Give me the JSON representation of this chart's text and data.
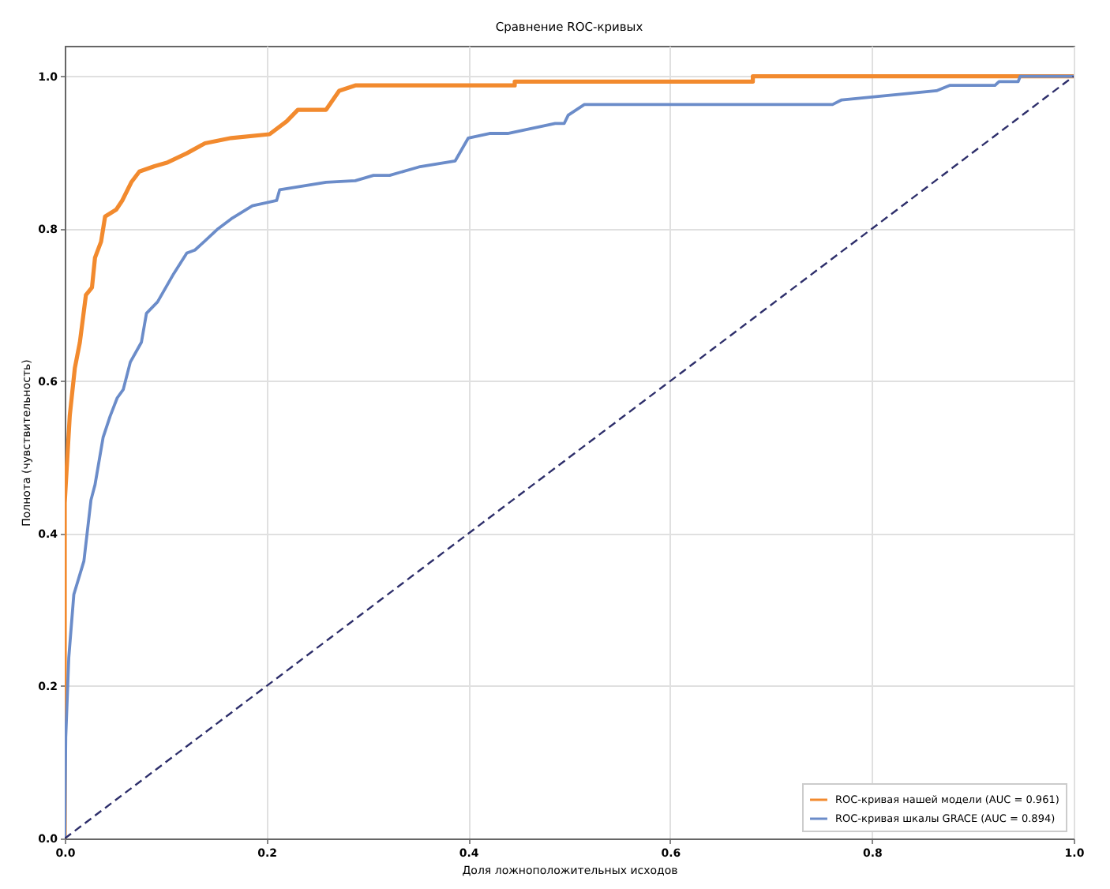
{
  "chart_data": {
    "type": "line",
    "title": "Сравнение ROC-кривых",
    "xlabel": "Доля ложноположительных исходов",
    "ylabel": "Полнота (чувствительность)",
    "xlim": [
      0,
      1
    ],
    "ylim": [
      0,
      1.04
    ],
    "xticks": [
      {
        "value": 0,
        "label": "0.0"
      },
      0.2,
      0.4,
      0.6,
      0.8,
      {
        "value": 1,
        "label": "1.0"
      }
    ],
    "yticks": [
      {
        "value": 0,
        "label": "0.0"
      },
      0.2,
      0.4,
      0.6,
      0.8,
      {
        "value": 1,
        "label": "1.0"
      }
    ],
    "grid": true,
    "legend": "bottom right",
    "marker": "none",
    "series": [
      {
        "name": "ROC-кривая нашей модели (AUC = 0.961)",
        "color": "#f28a2e",
        "line_style": "solid",
        "x": [
          0,
          0,
          0.001,
          0.005,
          0.01,
          0.015,
          0.021,
          0.027,
          0.03,
          0.036,
          0.04,
          0.051,
          0.057,
          0.066,
          0.074,
          0.089,
          0.102,
          0.121,
          0.139,
          0.165,
          0.203,
          0.22,
          0.231,
          0.259,
          0.272,
          0.288,
          0.446,
          0.446,
          0.682,
          0.682,
          1
        ],
        "values": [
          0,
          0.44,
          0.464,
          0.555,
          0.617,
          0.651,
          0.713,
          0.723,
          0.762,
          0.783,
          0.816,
          0.825,
          0.837,
          0.861,
          0.875,
          0.882,
          0.887,
          0.899,
          0.912,
          0.919,
          0.924,
          0.941,
          0.956,
          0.956,
          0.981,
          0.988,
          0.988,
          0.993,
          0.993,
          1,
          1
        ]
      },
      {
        "name": "ROC-кривая шкалы GRACE (AUC = 0.894)",
        "color": "#6b8cc9",
        "line_style": "solid",
        "x": [
          0,
          0.001,
          0.004,
          0.009,
          0.019,
          0.026,
          0.03,
          0.038,
          0.045,
          0.052,
          0.058,
          0.065,
          0.076,
          0.081,
          0.092,
          0.108,
          0.121,
          0.129,
          0.139,
          0.152,
          0.165,
          0.186,
          0.21,
          0.213,
          0.259,
          0.288,
          0.306,
          0.322,
          0.351,
          0.387,
          0.4,
          0.421,
          0.439,
          0.486,
          0.495,
          0.499,
          0.515,
          0.761,
          0.77,
          0.864,
          0.877,
          0.922,
          0.926,
          0.945,
          0.947,
          1
        ],
        "values": [
          0,
          0.133,
          0.237,
          0.32,
          0.364,
          0.444,
          0.464,
          0.526,
          0.554,
          0.578,
          0.589,
          0.625,
          0.651,
          0.689,
          0.704,
          0.741,
          0.768,
          0.772,
          0.784,
          0.8,
          0.813,
          0.83,
          0.837,
          0.851,
          0.861,
          0.863,
          0.87,
          0.87,
          0.881,
          0.889,
          0.919,
          0.925,
          0.925,
          0.938,
          0.938,
          0.949,
          0.963,
          0.963,
          0.969,
          0.981,
          0.988,
          0.988,
          0.993,
          0.993,
          1,
          1
        ]
      },
      {
        "color": "#2e2f6b",
        "line_style": "dashed",
        "x": [
          0,
          1
        ],
        "values": [
          0,
          1
        ]
      }
    ]
  }
}
